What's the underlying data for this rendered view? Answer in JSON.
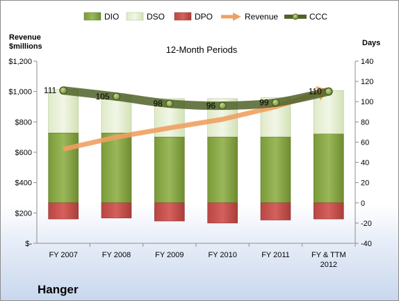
{
  "chart_data": {
    "type": "bar",
    "title": "12-Month Periods",
    "company": "Hanger",
    "left_axis": {
      "label_line1": "Revenue",
      "label_line2": "$millions",
      "range": [
        0,
        1200
      ],
      "ticks": [
        "$-",
        "$200",
        "$400",
        "$600",
        "$800",
        "$1,000",
        "$1,200"
      ]
    },
    "right_axis": {
      "label": "Days",
      "range": [
        -40,
        140
      ],
      "ticks": [
        "-40",
        "-20",
        "0",
        "20",
        "40",
        "60",
        "80",
        "100",
        "120",
        "140"
      ]
    },
    "categories": [
      "FY 2007",
      "FY 2008",
      "FY 2009",
      "FY 2010",
      "FY 2011",
      "FY & TTM 2012"
    ],
    "legend_position": "top",
    "grid": false,
    "series": [
      {
        "name": "DIO",
        "axis": "right",
        "kind": "stacked-bar",
        "color": "#7f9e3a",
        "values": [
          69,
          69,
          65,
          65,
          65,
          68
        ]
      },
      {
        "name": "DSO",
        "axis": "right",
        "kind": "stacked-bar",
        "color": "#d8e8b8",
        "values": [
          43,
          37,
          38,
          38,
          39,
          43
        ]
      },
      {
        "name": "DPO",
        "axis": "right",
        "kind": "negative-bar",
        "color": "#c0504d",
        "values": [
          -16,
          -15,
          -18,
          -20,
          -17,
          -16
        ]
      },
      {
        "name": "Revenue",
        "axis": "left",
        "kind": "arrow-line",
        "color": "#f0a060",
        "values": [
          620,
          700,
          760,
          817,
          900,
          1010
        ]
      },
      {
        "name": "CCC",
        "axis": "right",
        "kind": "line",
        "color": "#4f6228",
        "values": [
          111,
          105,
          98,
          96,
          99,
          110
        ]
      }
    ]
  }
}
